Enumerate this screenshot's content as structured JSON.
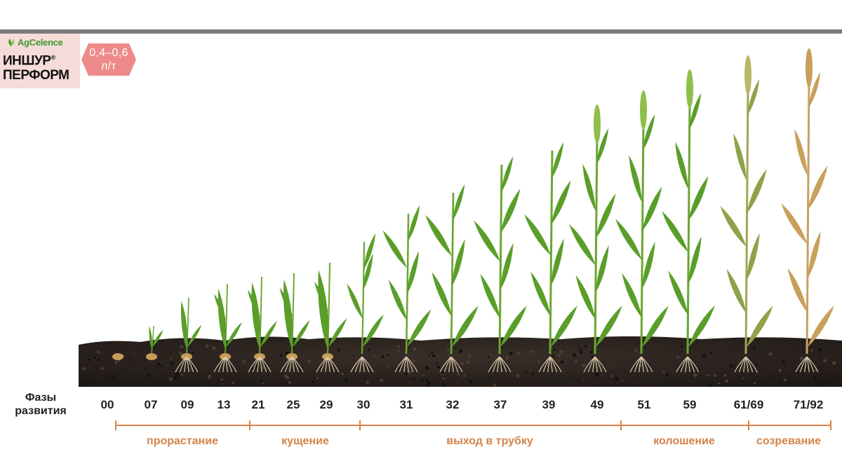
{
  "product": {
    "brand": "AgCelence",
    "name_line1": "ИНШУР",
    "registered": "®",
    "name_line2": "ПЕРФОРМ",
    "dose_value": "0,4–0,6",
    "dose_unit": "л/т"
  },
  "phase_title": "Фазы развития",
  "growth_codes": [
    "00",
    "07",
    "09",
    "13",
    "21",
    "25",
    "29",
    "30",
    "31",
    "32",
    "37",
    "39",
    "49",
    "51",
    "59",
    "61/69",
    "71/92"
  ],
  "stages": [
    {
      "label": "прорастание"
    },
    {
      "label": "кущение"
    },
    {
      "label": "выход в трубку"
    },
    {
      "label": "колошение"
    },
    {
      "label": "созревание"
    }
  ],
  "colors": {
    "bar": "#7b7b7e",
    "product_bg": "#f6dcd9",
    "dose_bg": "#ee8a8a",
    "brand_green": "#3f9a2e",
    "stage_orange": "#d4834a",
    "soil": "#2d2420",
    "leaf_green": "#5a9e2a",
    "ripe_gold": "#c9a05a"
  }
}
